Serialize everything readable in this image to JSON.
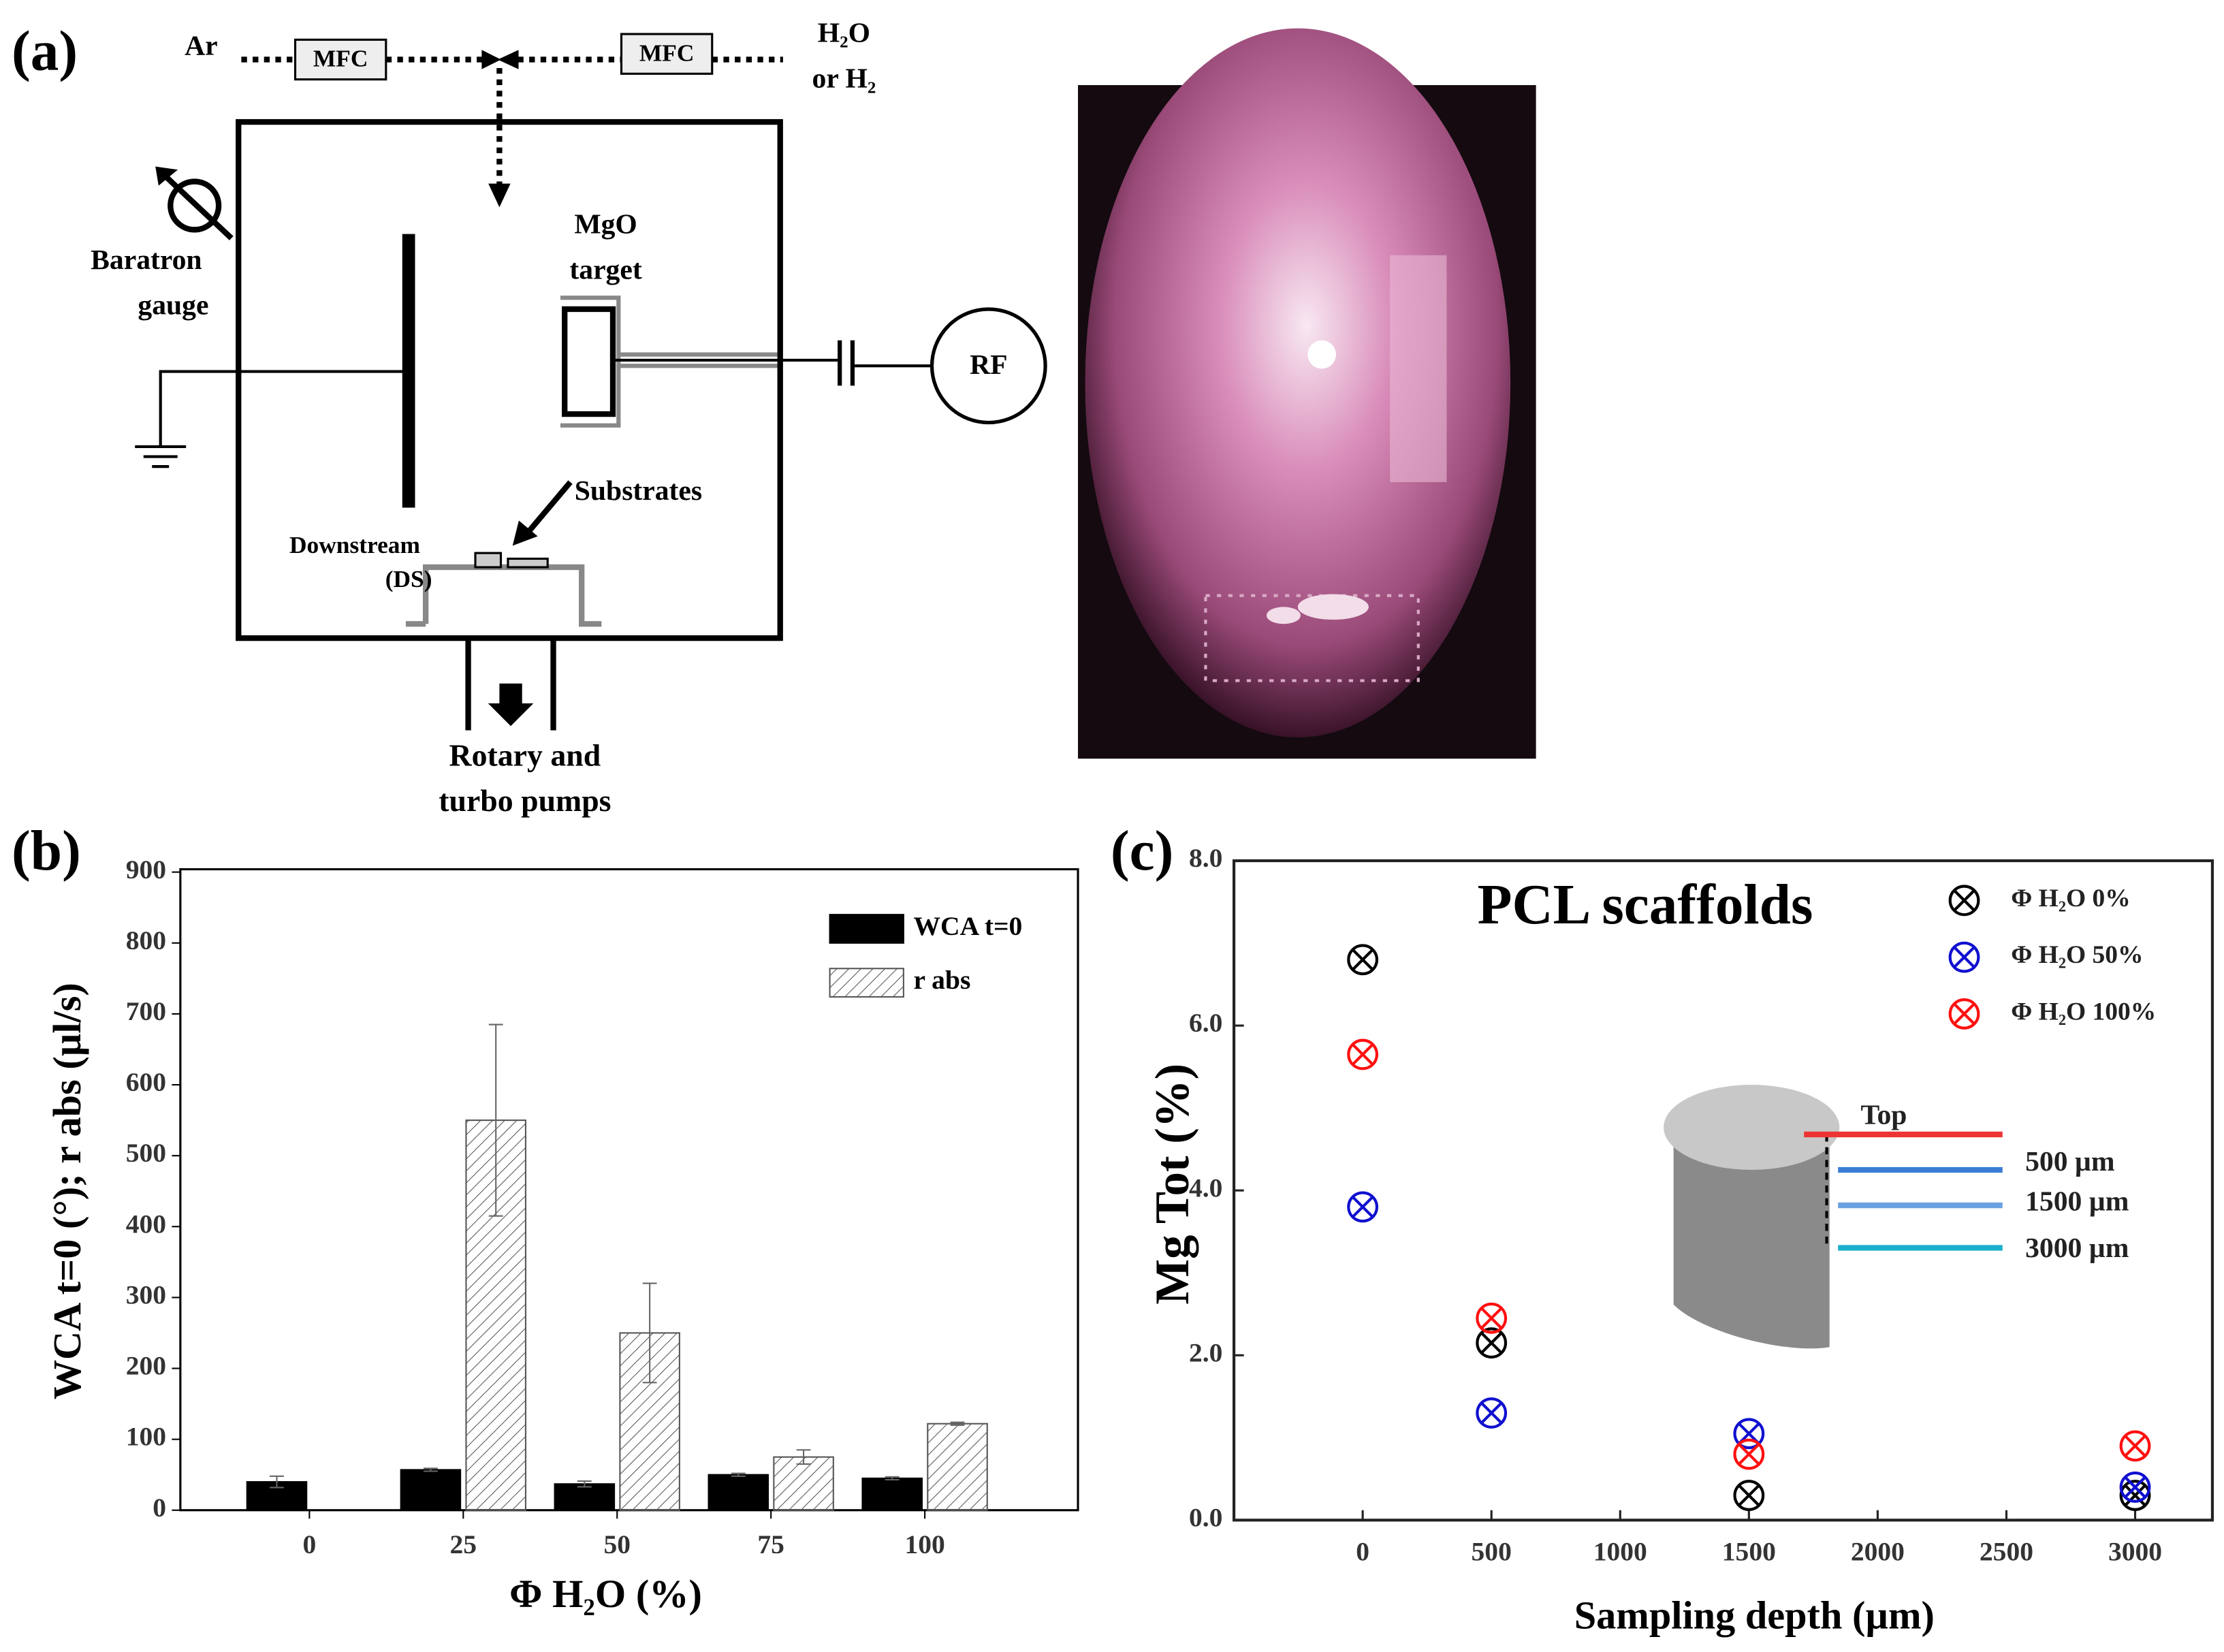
{
  "panel_labels": [
    "(a)",
    "(b)",
    "(c)"
  ],
  "diagram": {
    "labels": [
      "Ar",
      "MFC",
      "MFC",
      "H₂O",
      "or H₂",
      "Baratron",
      "gauge",
      "MgO",
      "target",
      "RF",
      "Substrates",
      "Downstream",
      "(DS)",
      "Rotary and",
      "turbo pumps"
    ]
  },
  "chart_data": [
    {
      "type": "bar",
      "xlabel": "Φ H₂O (%)",
      "ylabel": "WCA t=0 (°); r abs (µl/s)",
      "categories": [
        "0",
        "25",
        "50",
        "75",
        "100"
      ],
      "series": [
        {
          "name": "WCA t=0",
          "color": "#000000",
          "values": [
            40,
            57,
            37,
            50,
            45
          ],
          "errors": [
            8,
            2,
            4,
            2,
            2
          ]
        },
        {
          "name": "r abs",
          "color": "#555555",
          "hatch": true,
          "values": [
            null,
            550,
            250,
            75,
            122
          ],
          "errors": [
            null,
            135,
            70,
            10,
            2
          ]
        }
      ],
      "ylim": [
        0,
        900
      ],
      "yticks": [
        0,
        100,
        200,
        300,
        400,
        500,
        600,
        700,
        800,
        900
      ],
      "legend": "upper right"
    },
    {
      "type": "scatter",
      "title": "PCL scaffolds",
      "xlabel": "Sampling depth (µm)",
      "ylabel": "Mg Tot (%)",
      "x": [
        0,
        500,
        1500,
        3000
      ],
      "series": [
        {
          "name": "Φ H₂O 0%",
          "color": "#000000",
          "values": [
            6.8,
            2.15,
            0.3,
            0.3
          ]
        },
        {
          "name": "Φ H₂O 50%",
          "color": "#1010d0",
          "values": [
            3.8,
            1.3,
            1.05,
            0.4
          ]
        },
        {
          "name": "Φ H₂O 100%",
          "color": "#ff1010",
          "values": [
            5.65,
            2.45,
            0.8,
            0.9
          ]
        }
      ],
      "xlim": [
        -500,
        3300
      ],
      "xticks": [
        0,
        500,
        1000,
        1500,
        2000,
        2500,
        3000
      ],
      "ylim": [
        0,
        8
      ],
      "yticks": [
        {
          "value": 0,
          "label": "0.0"
        },
        {
          "value": 2,
          "label": "2.0"
        },
        {
          "value": 4,
          "label": "4.0"
        },
        {
          "value": 6,
          "label": "6.0"
        },
        {
          "value": 8,
          "label": "8.0"
        }
      ],
      "annotations": [
        "Top",
        "500 µm",
        "1500 µm",
        "3000 µm"
      ],
      "legend": "upper right"
    }
  ]
}
